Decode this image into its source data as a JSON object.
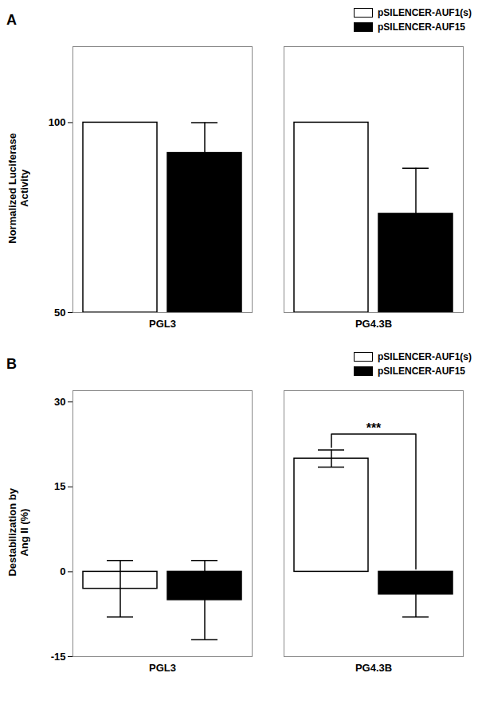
{
  "chart_data": [
    {
      "type": "bar",
      "title": "A",
      "ylabel": "Normalized Luciferase\nActivity",
      "categories": [
        "PGL3",
        "PG4.3B"
      ],
      "series": [
        {
          "name": "pSILENCER-AUF1(s)",
          "color": "#ffffff",
          "values": [
            100,
            100
          ]
        },
        {
          "name": "pSILENCER-AUF15",
          "color": "#000000",
          "values": [
            92,
            76
          ],
          "errors": [
            8,
            12
          ]
        }
      ],
      "ylim": [
        50,
        120
      ],
      "yticks": [
        50,
        100
      ],
      "legend": "upper right"
    },
    {
      "type": "bar",
      "title": "B",
      "ylabel": "Destabilization by\nAng II (%)",
      "categories": [
        "PGL3",
        "PG4.3B"
      ],
      "series": [
        {
          "name": "pSILENCER-AUF1(s)",
          "color": "#ffffff",
          "values": [
            -3,
            20
          ],
          "errors": [
            5,
            1.5
          ]
        },
        {
          "name": "pSILENCER-AUF15",
          "color": "#000000",
          "values": [
            -5,
            -4
          ],
          "errors": [
            7,
            4
          ]
        }
      ],
      "ylim": [
        -15,
        32
      ],
      "yticks": [
        -15,
        0,
        15,
        30
      ],
      "legend": "upper right",
      "annotations": [
        {
          "text": "***",
          "category": "PG4.3B"
        }
      ]
    }
  ]
}
